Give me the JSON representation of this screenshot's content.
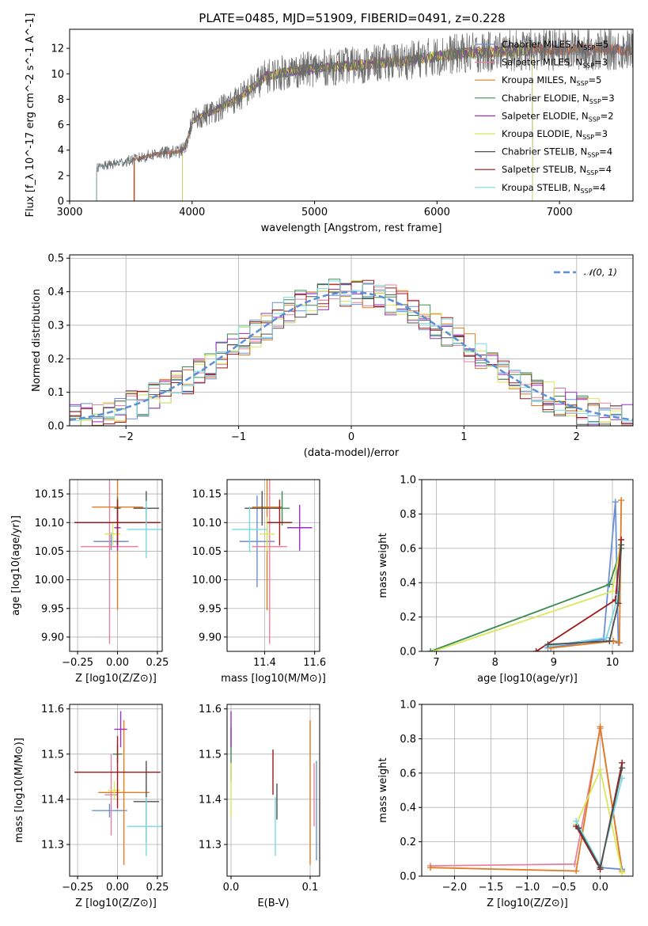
{
  "title": "PLATE=0485, MJD=51909, FIBERID=0491, z=0.228",
  "colors": {
    "Chabrier MILES": "#6a8fd8",
    "Salpeter MILES": "#e8829c",
    "Kroupa MILES": "#e07b22",
    "Chabrier ELODIE": "#3d8a55",
    "Salpeter ELODIE": "#9a2fc2",
    "Kroupa ELODIE": "#d8e85a",
    "Chabrier STELIB": "#505050",
    "Salpeter STELIB": "#a01818",
    "Kroupa STELIB": "#7ad8e0"
  },
  "panels": {
    "spectrum": {
      "xlabel": "wavelength [Angstrom, rest frame]",
      "ylabel": "Flux [f_λ 10^-17 erg cm^-2 s^-1 A^-1]",
      "legend": [
        {
          "name": "Chabrier MILES",
          "nssp": "5"
        },
        {
          "name": "Salpeter MILES",
          "nssp": "3"
        },
        {
          "name": "Kroupa MILES",
          "nssp": "5"
        },
        {
          "name": "Chabrier ELODIE",
          "nssp": "3"
        },
        {
          "name": "Salpeter ELODIE",
          "nssp": "2"
        },
        {
          "name": "Kroupa ELODIE",
          "nssp": "3"
        },
        {
          "name": "Chabrier STELIB",
          "nssp": "4"
        },
        {
          "name": "Salpeter STELIB",
          "nssp": "4"
        },
        {
          "name": "Kroupa STELIB",
          "nssp": "4"
        }
      ]
    },
    "residuals": {
      "xlabel": "(data-model)/error",
      "ylabel": "Normed distribution",
      "legend": "𝒩(0, 1)"
    },
    "age_Z": {
      "xlabel": "Z [log10(Z/Z⊙)]",
      "ylabel": "age [log10(age/yr)]"
    },
    "age_mass": {
      "xlabel": "mass [log10(M/M⊙)]"
    },
    "mw_age": {
      "xlabel": "age [log10(age/yr)]",
      "ylabel": "mass weight"
    },
    "mass_Z": {
      "xlabel": "Z [log10(Z/Z⊙)]",
      "ylabel": "mass [log10(M/M⊙)]"
    },
    "mass_ebv": {
      "xlabel": "E(B-V)"
    },
    "mw_Z": {
      "xlabel": "Z [log10(Z/Z⊙)]",
      "ylabel": "mass weight"
    }
  },
  "chart_data": [
    {
      "type": "line",
      "title": "PLATE=0485, MJD=51909, FIBERID=0491, z=0.228",
      "xlabel": "wavelength [Angstrom, rest frame]",
      "ylabel": "Flux [fλ 10^-17 erg cm^-2 s^-1 A^-1]",
      "xlim": [
        3000,
        7600
      ],
      "ylim": [
        0,
        13.5
      ],
      "xticks": [
        3000,
        4000,
        5000,
        6000,
        7000
      ],
      "yticks": [
        0,
        2,
        4,
        6,
        8,
        10,
        12
      ],
      "continuum": {
        "x": [
          3220,
          3350,
          3500,
          3700,
          3900,
          3950,
          4000,
          4200,
          4400,
          4600,
          4800,
          5000,
          5200,
          5400,
          5600,
          5800,
          6000,
          6200,
          6400,
          6600,
          6800,
          7000,
          7200,
          7400,
          7600
        ],
        "y": [
          2.6,
          2.9,
          3.2,
          3.7,
          3.9,
          4.3,
          6.3,
          7.2,
          8.2,
          9.8,
          10.2,
          10.4,
          10.6,
          10.7,
          10.9,
          11.1,
          11.4,
          11.6,
          11.7,
          11.8,
          11.9,
          11.9,
          11.9,
          11.9,
          11.9
        ]
      },
      "legend_placement": "right"
    },
    {
      "type": "line",
      "xlabel": "(data-model)/error",
      "ylabel": "Normed distribution",
      "xlim": [
        -2.5,
        2.5
      ],
      "ylim": [
        0,
        0.51
      ],
      "xticks": [
        -2,
        -1,
        0,
        1,
        2
      ],
      "yticks": [
        0,
        0.1,
        0.2,
        0.3,
        0.4,
        0.5
      ],
      "series": [
        {
          "name": "𝒩(0, 1)",
          "function": "standard normal pdf"
        }
      ],
      "histogram_bins": {
        "width": 0.1,
        "range": [
          -2.5,
          2.5
        ]
      },
      "legend_placement": "top-right",
      "grid": true
    },
    {
      "type": "scatter",
      "xlabel": "Z [log10(Z/Z⊙)]",
      "ylabel": "age [log10(age/yr)]",
      "xlim": [
        -0.3,
        0.28
      ],
      "ylim": [
        9.875,
        10.175
      ],
      "xticks": [
        -0.25,
        0,
        0.25
      ],
      "yticks": [
        9.9,
        9.95,
        10.0,
        10.05,
        10.1,
        10.15
      ],
      "points": [
        {
          "model": "Chabrier MILES",
          "x": -0.04,
          "xerr": 0.11,
          "y": 10.067,
          "yerr": 0.015
        },
        {
          "model": "Salpeter MILES",
          "x": -0.05,
          "xerr": 0.18,
          "y": 10.058,
          "yerr": 0.17
        },
        {
          "model": "Kroupa MILES",
          "x": 0.0,
          "xerr": 0.16,
          "y": 10.127,
          "yerr": 0.18
        },
        {
          "model": "Chabrier ELODIE",
          "x": 0.0,
          "xerr": 0.02,
          "y": 10.125,
          "yerr": 0.02
        },
        {
          "model": "Salpeter ELODIE",
          "x": 0.0,
          "xerr": 0.02,
          "y": 10.091,
          "yerr": 0.04
        },
        {
          "model": "Kroupa ELODIE",
          "x": -0.03,
          "xerr": 0.05,
          "y": 10.08,
          "yerr": 0.02
        },
        {
          "model": "Chabrier STELIB",
          "x": 0.18,
          "xerr": 0.08,
          "y": 10.125,
          "yerr": 0.03
        },
        {
          "model": "Salpeter STELIB",
          "x": 0.0,
          "xerr": 0.27,
          "y": 10.1,
          "yerr": 0.04
        },
        {
          "model": "Kroupa STELIB",
          "x": 0.18,
          "xerr": 0.12,
          "y": 10.088,
          "yerr": 0.05
        }
      ]
    },
    {
      "type": "scatter",
      "xlabel": "mass [log10(M/M⊙)]",
      "xlim": [
        11.25,
        11.62
      ],
      "ylim": [
        9.875,
        10.175
      ],
      "xticks": [
        11.4,
        11.6
      ],
      "yticks": [
        9.9,
        9.95,
        10.0,
        10.05,
        10.1,
        10.15
      ],
      "points": [
        {
          "model": "Chabrier MILES",
          "x": 11.37,
          "xerr": 0.07,
          "y": 10.067,
          "yerr": 0.08
        },
        {
          "model": "Salpeter MILES",
          "x": 11.42,
          "xerr": 0.07,
          "y": 10.058,
          "yerr": 0.17
        },
        {
          "model": "Kroupa MILES",
          "x": 11.41,
          "xerr": 0.06,
          "y": 10.127,
          "yerr": 0.18
        },
        {
          "model": "Chabrier ELODIE",
          "x": 11.47,
          "xerr": 0.03,
          "y": 10.125,
          "yerr": 0.03
        },
        {
          "model": "Salpeter ELODIE",
          "x": 11.54,
          "xerr": 0.05,
          "y": 10.091,
          "yerr": 0.04
        },
        {
          "model": "Kroupa ELODIE",
          "x": 11.41,
          "xerr": 0.03,
          "y": 10.08,
          "yerr": 0.03
        },
        {
          "model": "Chabrier STELIB",
          "x": 11.39,
          "xerr": 0.07,
          "y": 10.125,
          "yerr": 0.03
        },
        {
          "model": "Salpeter STELIB",
          "x": 11.46,
          "xerr": 0.05,
          "y": 10.1,
          "yerr": 0.04
        },
        {
          "model": "Kroupa STELIB",
          "x": 11.34,
          "xerr": 0.07,
          "y": 10.088,
          "yerr": 0.04
        }
      ]
    },
    {
      "type": "line",
      "xlabel": "age [log10(age/yr)]",
      "ylabel": "mass weight",
      "xlim": [
        6.75,
        10.35
      ],
      "ylim": [
        0,
        1
      ],
      "xticks": [
        7,
        8,
        9,
        10
      ],
      "yticks": [
        0,
        0.2,
        0.4,
        0.6,
        0.8,
        1.0
      ],
      "series": [
        {
          "name": "Chabrier MILES",
          "x": [
            8.9,
            9.85,
            10.05,
            10.1
          ],
          "y": [
            0.02,
            0.07,
            0.87,
            0.05
          ]
        },
        {
          "name": "Kroupa MILES",
          "x": [
            8.95,
            10.02,
            10.12,
            10.15
          ],
          "y": [
            0.02,
            0.06,
            0.05,
            0.88
          ]
        },
        {
          "name": "Chabrier ELODIE",
          "x": [
            6.9,
            9.95,
            10.15
          ],
          "y": [
            0.0,
            0.39,
            0.6
          ]
        },
        {
          "name": "Kroupa ELODIE",
          "x": [
            6.95,
            10.0,
            10.15
          ],
          "y": [
            0.0,
            0.35,
            0.65
          ]
        },
        {
          "name": "Salpeter STELIB",
          "x": [
            8.7,
            10.05,
            10.15
          ],
          "y": [
            0.0,
            0.3,
            0.65
          ]
        },
        {
          "name": "Kroupa STELIB",
          "x": [
            8.9,
            9.9,
            10.1
          ],
          "y": [
            0.03,
            0.08,
            0.33
          ]
        },
        {
          "name": "Chabrier STELIB",
          "x": [
            8.9,
            9.95,
            10.1,
            10.15
          ],
          "y": [
            0.04,
            0.06,
            0.28,
            0.62
          ]
        }
      ]
    },
    {
      "type": "scatter",
      "xlabel": "Z [log10(Z/Z⊙)]",
      "ylabel": "mass [log10(M/M⊙)]",
      "xlim": [
        -0.3,
        0.28
      ],
      "ylim": [
        11.23,
        11.61
      ],
      "xticks": [
        -0.25,
        0,
        0.25
      ],
      "yticks": [
        11.3,
        11.4,
        11.5,
        11.6
      ],
      "points": [
        {
          "model": "Chabrier MILES",
          "x": -0.05,
          "xerr": 0.11,
          "y": 11.375,
          "yerr": 0.015
        },
        {
          "model": "Salpeter MILES",
          "x": -0.04,
          "xerr": 0.04,
          "y": 11.41,
          "yerr": 0.09
        },
        {
          "model": "Kroupa MILES",
          "x": 0.04,
          "xerr": 0.16,
          "y": 11.415,
          "yerr": 0.16
        },
        {
          "model": "Chabrier ELODIE",
          "x": 0.0,
          "xerr": 0.03,
          "y": 11.5,
          "yerr": 0.02
        },
        {
          "model": "Salpeter ELODIE",
          "x": 0.02,
          "xerr": 0.04,
          "y": 11.555,
          "yerr": 0.04
        },
        {
          "model": "Kroupa ELODIE",
          "x": -0.02,
          "xerr": 0.04,
          "y": 11.42,
          "yerr": 0.02
        },
        {
          "model": "Chabrier STELIB",
          "x": 0.18,
          "xerr": 0.08,
          "y": 11.395,
          "yerr": 0.09
        },
        {
          "model": "Salpeter STELIB",
          "x": 0.0,
          "xerr": 0.27,
          "y": 11.46,
          "yerr": 0.08
        },
        {
          "model": "Kroupa STELIB",
          "x": 0.18,
          "xerr": 0.12,
          "y": 11.34,
          "yerr": 0.065
        }
      ]
    },
    {
      "type": "scatter",
      "xlabel": "E(B-V)",
      "xlim": [
        -0.005,
        0.112
      ],
      "ylim": [
        11.23,
        11.61
      ],
      "xticks": [
        0.0,
        0.1
      ],
      "yticks": [
        11.3,
        11.4,
        11.5,
        11.6
      ],
      "points": [
        {
          "model": "Chabrier MILES",
          "x": 0.108,
          "y": 11.375,
          "yerr": 0.11
        },
        {
          "model": "Salpeter MILES",
          "x": 0.105,
          "y": 11.41,
          "yerr": 0.07
        },
        {
          "model": "Kroupa MILES",
          "x": 0.1,
          "y": 11.415,
          "yerr": 0.16
        },
        {
          "model": "Chabrier ELODIE",
          "x": 0.0,
          "y": 11.5,
          "yerr": 0.06
        },
        {
          "model": "Salpeter ELODIE",
          "x": 0.0,
          "y": 11.555,
          "yerr": 0.04
        },
        {
          "model": "Kroupa ELODIE",
          "x": 0.0,
          "y": 11.42,
          "yerr": 0.06
        },
        {
          "model": "Chabrier STELIB",
          "x": 0.058,
          "y": 11.395,
          "yerr": 0.04
        },
        {
          "model": "Salpeter STELIB",
          "x": 0.053,
          "y": 11.46,
          "yerr": 0.05
        },
        {
          "model": "Kroupa STELIB",
          "x": 0.056,
          "y": 11.34,
          "yerr": 0.065
        }
      ]
    },
    {
      "type": "line",
      "xlabel": "Z [log10(Z/Z⊙)]",
      "ylabel": "mass weight",
      "xlim": [
        -2.45,
        0.45
      ],
      "ylim": [
        0,
        1
      ],
      "xticks": [
        -2.0,
        -1.5,
        -1.0,
        -0.5,
        0.0
      ],
      "yticks": [
        0,
        0.2,
        0.4,
        0.6,
        0.8,
        1.0
      ],
      "series": [
        {
          "name": "Salpeter MILES",
          "x": [
            -2.33,
            -0.35,
            0.0,
            0.3
          ],
          "y": [
            0.06,
            0.07,
            0.86,
            0.04
          ]
        },
        {
          "name": "Kroupa MILES",
          "x": [
            -2.33,
            -0.33,
            0.0,
            0.3
          ],
          "y": [
            0.05,
            0.03,
            0.87,
            0.03
          ]
        },
        {
          "name": "Chabrier MILES",
          "x": [
            -0.33,
            0.0,
            0.3
          ],
          "y": [
            0.3,
            0.05,
            0.04
          ]
        },
        {
          "name": "Kroupa ELODIE",
          "x": [
            -0.33,
            0.0,
            0.3
          ],
          "y": [
            0.3,
            0.62,
            0.02
          ]
        },
        {
          "name": "Salpeter STELIB",
          "x": [
            -0.33,
            0.0,
            0.3
          ],
          "y": [
            0.29,
            0.04,
            0.66
          ]
        },
        {
          "name": "Kroupa STELIB",
          "x": [
            -0.33,
            0.0,
            0.3
          ],
          "y": [
            0.32,
            0.06,
            0.57
          ]
        },
        {
          "name": "Chabrier STELIB",
          "x": [
            -0.3,
            0.0,
            0.3
          ],
          "y": [
            0.28,
            0.05,
            0.63
          ]
        }
      ]
    }
  ]
}
